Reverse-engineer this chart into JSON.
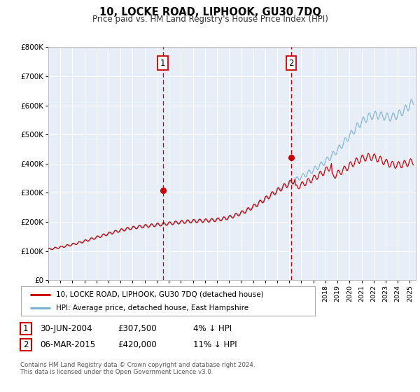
{
  "title": "10, LOCKE ROAD, LIPHOOK, GU30 7DQ",
  "subtitle": "Price paid vs. HM Land Registry's House Price Index (HPI)",
  "background_color": "#ffffff",
  "plot_bg_color": "#e8eef8",
  "grid_color": "#ffffff",
  "hpi_color": "#7ab0d4",
  "price_color": "#cc0000",
  "ylim": [
    0,
    800000
  ],
  "yticks": [
    0,
    100000,
    200000,
    300000,
    400000,
    500000,
    600000,
    700000,
    800000
  ],
  "ytick_labels": [
    "£0",
    "£100K",
    "£200K",
    "£300K",
    "£400K",
    "£500K",
    "£600K",
    "£700K",
    "£800K"
  ],
  "xmin": 1995.0,
  "xmax": 2025.5,
  "marker1_x": 2004.5,
  "marker1_y": 307500,
  "marker1_label": "1",
  "marker1_date": "30-JUN-2004",
  "marker1_price": "£307,500",
  "marker1_hpi": "4% ↓ HPI",
  "marker2_x": 2015.17,
  "marker2_y": 420000,
  "marker2_label": "2",
  "marker2_date": "06-MAR-2015",
  "marker2_price": "£420,000",
  "marker2_hpi": "11% ↓ HPI",
  "legend_line1": "10, LOCKE ROAD, LIPHOOK, GU30 7DQ (detached house)",
  "legend_line2": "HPI: Average price, detached house, East Hampshire",
  "footer1": "Contains HM Land Registry data © Crown copyright and database right 2024.",
  "footer2": "This data is licensed under the Open Government Licence v3.0."
}
